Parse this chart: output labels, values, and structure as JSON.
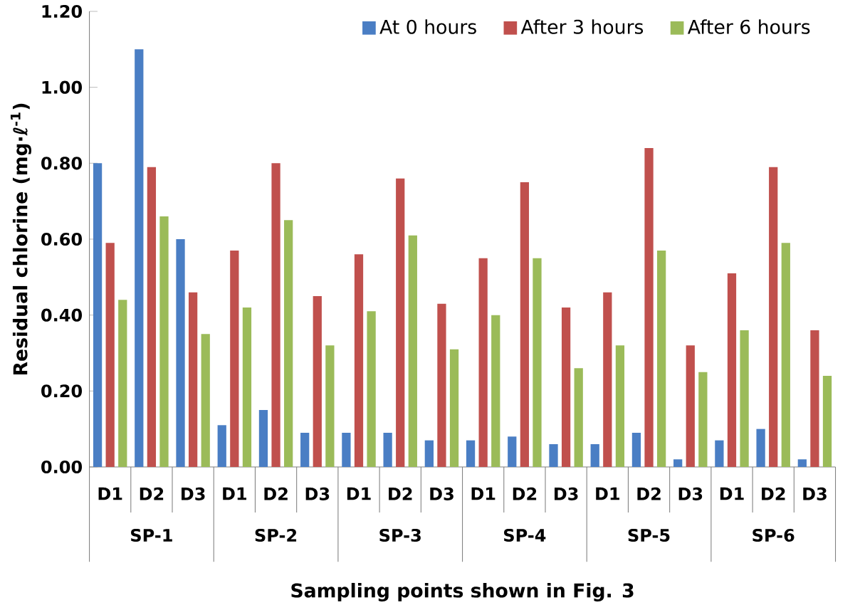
{
  "chart_data": {
    "type": "bar",
    "xlabel": "Sampling points shown in Fig. 3",
    "ylabel": "Residual chlorine (mg·ℓ$^{-1}$)",
    "categories": [
      "D1",
      "D2",
      "D3",
      "D1",
      "D2",
      "D3",
      "D1",
      "D2",
      "D3",
      "D1",
      "D2",
      "D3",
      "D1",
      "D2",
      "D3",
      "D1",
      "D2",
      "D3"
    ],
    "series": [
      {
        "name": "At 0 hours",
        "color": "#4a7ec4",
        "values": [
          0.8,
          1.1,
          0.6,
          0.11,
          0.15,
          0.09,
          0.09,
          0.09,
          0.07,
          0.07,
          0.08,
          0.06,
          0.06,
          0.09,
          0.02,
          0.07,
          0.1,
          0.02
        ]
      },
      {
        "name": "After 3 hours",
        "color": "#c0504d",
        "values": [
          0.59,
          0.79,
          0.46,
          0.57,
          0.8,
          0.45,
          0.56,
          0.76,
          0.43,
          0.55,
          0.75,
          0.42,
          0.46,
          0.84,
          0.32,
          0.51,
          0.79,
          0.36
        ]
      },
      {
        "name": "After 6 hours",
        "color": "#9bbb59",
        "values": [
          0.44,
          0.66,
          0.35,
          0.42,
          0.65,
          0.32,
          0.41,
          0.61,
          0.31,
          0.4,
          0.55,
          0.26,
          0.32,
          0.57,
          0.25,
          0.36,
          0.59,
          0.24
        ]
      }
    ],
    "annotations": [
      "SP-1",
      "SP-2",
      "SP-3",
      "SP-4",
      "SP-5",
      "SP-6"
    ],
    "ylim": [
      0,
      1.2
    ],
    "yticks": [
      {
        "value": 0,
        "label": "0.00"
      },
      {
        "value": 0.2,
        "label": "0.20"
      },
      {
        "value": 0.4,
        "label": "0.40"
      },
      {
        "value": 0.6,
        "label": "0.60"
      },
      {
        "value": 0.8,
        "label": "0.80"
      },
      {
        "value": 1.0,
        "label": "1.00"
      },
      {
        "value": 1.2,
        "label": "1.20"
      }
    ],
    "grid": false,
    "legend": "top right"
  }
}
